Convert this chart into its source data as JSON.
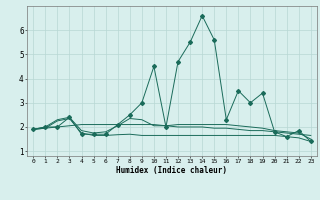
{
  "x": [
    0,
    1,
    2,
    3,
    4,
    5,
    6,
    7,
    8,
    9,
    10,
    11,
    12,
    13,
    14,
    15,
    16,
    17,
    18,
    19,
    20,
    21,
    22,
    23
  ],
  "line1": [
    1.9,
    2.0,
    2.0,
    2.4,
    1.7,
    1.7,
    1.7,
    2.1,
    2.5,
    3.0,
    4.5,
    2.0,
    4.7,
    5.5,
    6.6,
    5.6,
    2.3,
    3.5,
    3.0,
    3.4,
    1.8,
    1.6,
    1.85,
    1.4
  ],
  "line2": [
    1.9,
    2.0,
    2.3,
    2.4,
    1.85,
    1.75,
    1.8,
    2.05,
    2.35,
    2.3,
    2.05,
    2.05,
    2.1,
    2.1,
    2.1,
    2.1,
    2.1,
    2.05,
    2.0,
    1.95,
    1.85,
    1.8,
    1.75,
    1.5
  ],
  "line3": [
    1.9,
    1.95,
    2.25,
    2.35,
    1.75,
    1.65,
    1.65,
    1.68,
    1.7,
    1.65,
    1.65,
    1.65,
    1.65,
    1.65,
    1.65,
    1.65,
    1.65,
    1.65,
    1.65,
    1.65,
    1.65,
    1.6,
    1.55,
    1.4
  ],
  "line4": [
    1.9,
    1.95,
    2.0,
    2.05,
    2.1,
    2.1,
    2.1,
    2.1,
    2.1,
    2.1,
    2.1,
    2.05,
    2.0,
    2.0,
    2.0,
    1.95,
    1.95,
    1.9,
    1.85,
    1.85,
    1.8,
    1.75,
    1.7,
    1.65
  ],
  "bg_color": "#d8efed",
  "grid_color": "#b8d8d4",
  "line_color": "#1a6b5a",
  "xlabel": "Humidex (Indice chaleur)",
  "ylim": [
    0.8,
    7.0
  ],
  "xlim": [
    -0.5,
    23.5
  ],
  "yticks": [
    1,
    2,
    3,
    4,
    5,
    6
  ],
  "xticks": [
    0,
    1,
    2,
    3,
    4,
    5,
    6,
    7,
    8,
    9,
    10,
    11,
    12,
    13,
    14,
    15,
    16,
    17,
    18,
    19,
    20,
    21,
    22,
    23
  ]
}
